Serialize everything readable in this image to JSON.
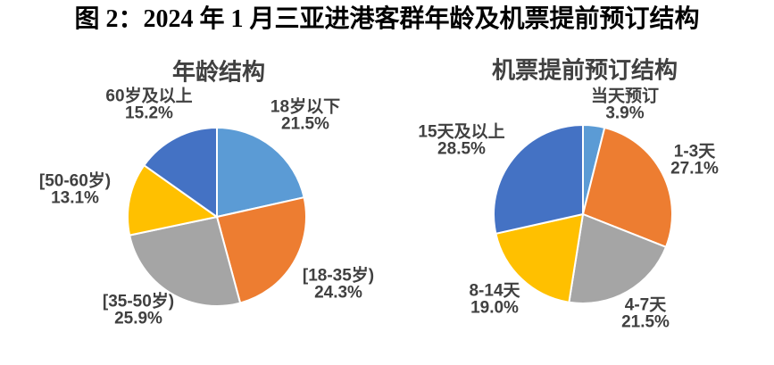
{
  "page": {
    "title": "图 2：2024 年 1 月三亚进港客群年龄及机票提前预订结构"
  },
  "chart_data": [
    {
      "type": "pie",
      "title": "年龄结构",
      "start_angle_deg": 0,
      "direction": "clockwise",
      "legend": "none",
      "data_labels": "outside",
      "slices": [
        {
          "label": "18岁以下",
          "value": 21.5,
          "pct_text": "21.5%",
          "color": "#5B9BD5"
        },
        {
          "label": "[18-35岁)",
          "value": 24.3,
          "pct_text": "24.3%",
          "color": "#ED7D31"
        },
        {
          "label": "[35-50岁)",
          "value": 25.9,
          "pct_text": "25.9%",
          "color": "#A5A5A5"
        },
        {
          "label": "[50-60岁)",
          "value": 13.1,
          "pct_text": "13.1%",
          "color": "#FFC000"
        },
        {
          "label": "60岁及以上",
          "value": 15.2,
          "pct_text": "15.2%",
          "color": "#4472C4"
        }
      ]
    },
    {
      "type": "pie",
      "title": "机票提前预订结构",
      "start_angle_deg": 0,
      "direction": "clockwise",
      "legend": "none",
      "data_labels": "outside",
      "slices": [
        {
          "label": "当天预订",
          "value": 3.9,
          "pct_text": "3.9%",
          "color": "#5B9BD5"
        },
        {
          "label": "1-3天",
          "value": 27.1,
          "pct_text": "27.1%",
          "color": "#ED7D31"
        },
        {
          "label": "4-7天",
          "value": 21.5,
          "pct_text": "21.5%",
          "color": "#A5A5A5"
        },
        {
          "label": "8-14天",
          "value": 19.0,
          "pct_text": "19.0%",
          "color": "#FFC000"
        },
        {
          "label": "15天及以上",
          "value": 28.5,
          "pct_text": "28.5%",
          "color": "#4472C4"
        }
      ]
    }
  ]
}
